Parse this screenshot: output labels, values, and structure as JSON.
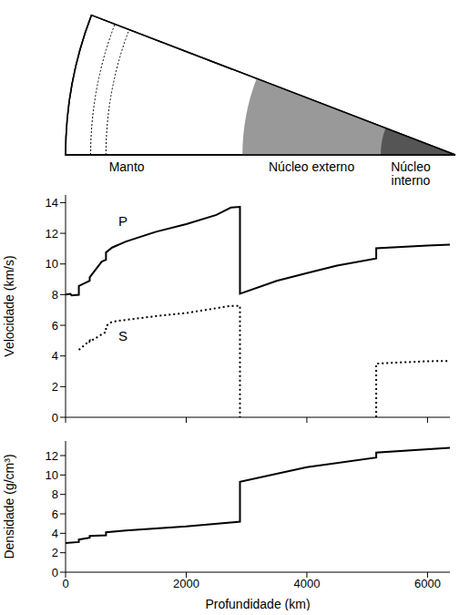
{
  "diagram": {
    "labels": [
      "Manto",
      "Núcleo externo",
      "Núcleo interno"
    ],
    "radius_km": 6371,
    "outer_core_depth_km": 2891,
    "inner_core_depth_km": 5150,
    "dotted_depths_km": [
      410,
      660
    ],
    "colors": [
      "#ffffff",
      "#999999",
      "#555555"
    ]
  },
  "chart_data": [
    {
      "type": "line",
      "y_label": "Velocidade (km/s)",
      "xlim": [
        0,
        6371
      ],
      "xticks": [
        0,
        2000,
        4000,
        6000
      ],
      "ylim": [
        0,
        14.5
      ],
      "yticks": [
        0,
        2,
        4,
        6,
        8,
        10,
        12,
        14
      ],
      "tick_labels": "y",
      "series": [
        {
          "name": "P",
          "color": "#000000",
          "line_style": "solid",
          "x": [
            0,
            80,
            100,
            220,
            220,
            400,
            400,
            600,
            670,
            670,
            771,
            1000,
            1500,
            2000,
            2500,
            2741,
            2891,
            2891,
            3500,
            4000,
            4500,
            5150,
            5150,
            5500,
            6000,
            6371
          ],
          "values": [
            8.0,
            8.05,
            7.95,
            7.99,
            8.56,
            8.9,
            9.13,
            10.16,
            10.27,
            10.75,
            11.07,
            11.46,
            12.1,
            12.6,
            13.2,
            13.68,
            13.72,
            8.06,
            8.9,
            9.4,
            9.9,
            10.36,
            11.03,
            11.1,
            11.2,
            11.26
          ]
        },
        {
          "name": "S",
          "color": "#000000",
          "line_style": "dotted",
          "x": [
            220,
            400,
            400,
            670,
            670,
            771,
            1500,
            2000,
            2741,
            2891,
            2891,
            4000,
            5150,
            5150,
            6000,
            6371
          ],
          "values": [
            4.4,
            5.0,
            4.93,
            5.57,
            5.95,
            6.24,
            6.6,
            6.8,
            7.27,
            7.27,
            0,
            null,
            0,
            3.5,
            3.66,
            3.67
          ]
        }
      ],
      "annotations": [
        {
          "text": "P",
          "x": 950,
          "y": 12.8
        },
        {
          "text": "S",
          "x": 950,
          "y": 5.3
        }
      ]
    },
    {
      "type": "line",
      "x_label": "Profundidade (km)",
      "y_label": "Densidade (g/cm³)",
      "xlim": [
        0,
        6371
      ],
      "xticks": [
        0,
        2000,
        4000,
        6000
      ],
      "ylim": [
        0,
        13.5
      ],
      "yticks": [
        0,
        2,
        4,
        6,
        8,
        10,
        12
      ],
      "series": [
        {
          "color": "#000000",
          "line_style": "solid",
          "x": [
            0,
            220,
            220,
            400,
            400,
            670,
            670,
            1000,
            2000,
            2891,
            2891,
            4000,
            5150,
            5150,
            6371
          ],
          "values": [
            3.0,
            3.1,
            3.36,
            3.54,
            3.72,
            3.8,
            4.1,
            4.3,
            4.7,
            5.2,
            9.3,
            10.8,
            11.8,
            12.3,
            12.8
          ]
        }
      ]
    }
  ]
}
